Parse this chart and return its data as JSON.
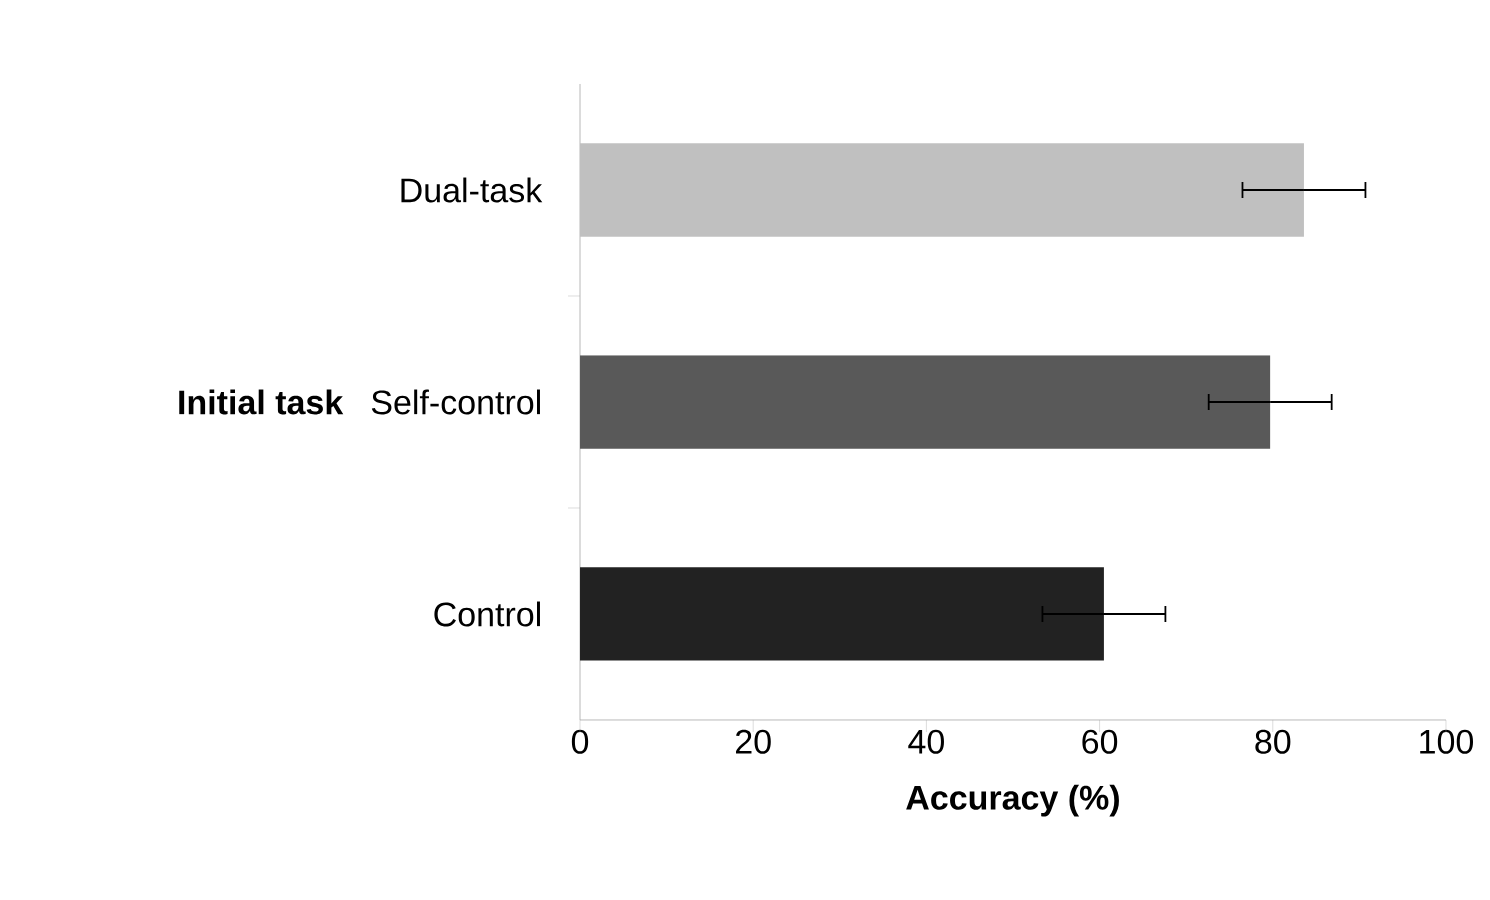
{
  "chart_data": {
    "type": "bar",
    "orientation": "horizontal",
    "xlabel": "Accuracy (%)",
    "ylabel": "Initial task",
    "categories": [
      "Dual-task",
      "Self-control",
      "Control"
    ],
    "values": [
      83.6,
      79.7,
      60.5
    ],
    "errors": [
      7.1,
      7.1,
      7.1
    ],
    "colors": [
      "#c0c0c0",
      "#595959",
      "#222222"
    ],
    "xlim": [
      0,
      100
    ],
    "xticks": [
      0,
      20,
      40,
      60,
      80,
      100
    ]
  }
}
